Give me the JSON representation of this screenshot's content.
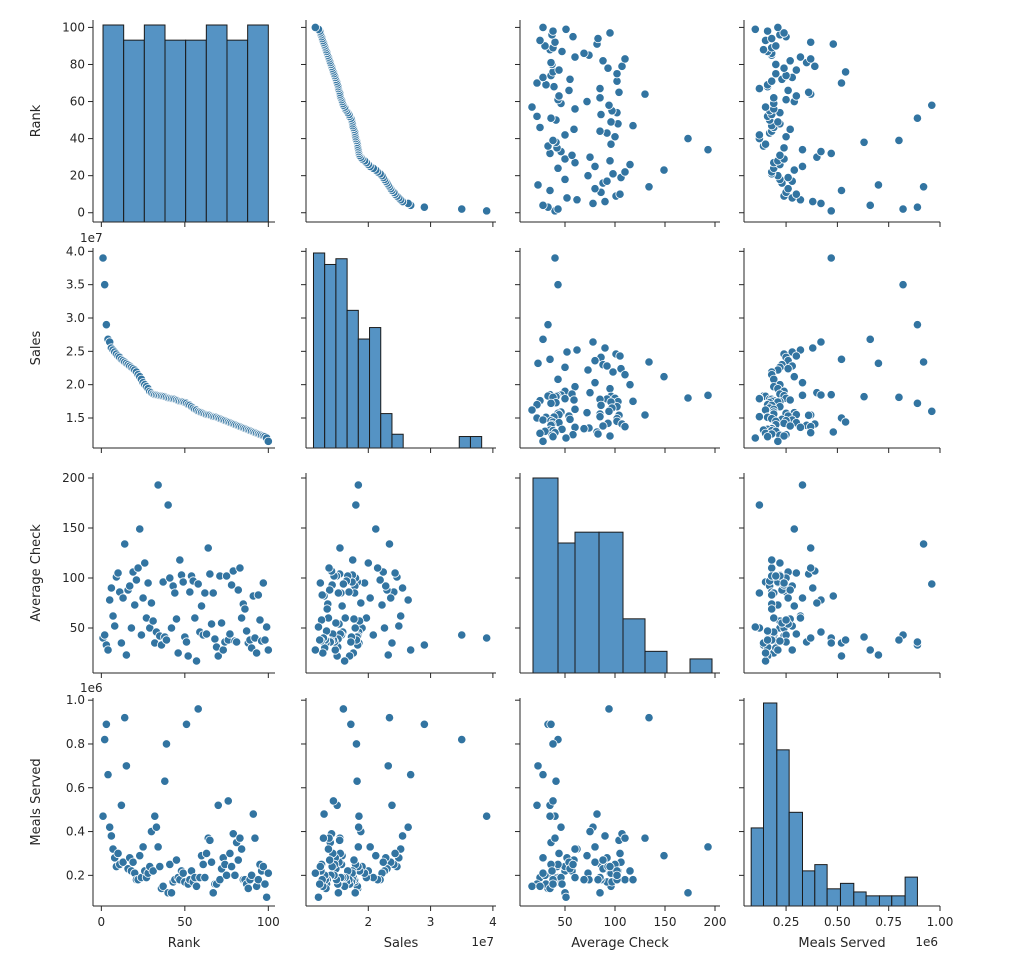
{
  "chart_data": {
    "type": "scatter",
    "kind": "pairplot",
    "color": "#3274a1",
    "hist_fill": "#5593c4",
    "variables": [
      "Rank",
      "Sales",
      "Average Check",
      "Meals Served"
    ],
    "axes": {
      "Rank": {
        "range": [
          -5,
          104
        ],
        "ticks": [
          0,
          50,
          100
        ],
        "tick_labels": [
          "0",
          "50",
          "100"
        ],
        "yticks": [
          0,
          20,
          40,
          60,
          80,
          100
        ],
        "ytick_labels": [
          "0",
          "20",
          "40",
          "60",
          "80",
          "100"
        ],
        "offset": ""
      },
      "Sales": {
        "range": [
          10000000.0,
          40500000.0
        ],
        "ticks": [
          20000000.0,
          30000000.0,
          40000000.0
        ],
        "tick_labels": [
          "2",
          "3",
          "4"
        ],
        "yrange": [
          10500000.0,
          40500000.0
        ],
        "yticks": [
          15000000.0,
          20000000.0,
          25000000.0,
          30000000.0,
          35000000.0,
          40000000.0
        ],
        "ytick_labels": [
          "1.5",
          "2.0",
          "2.5",
          "3.0",
          "3.5",
          "4.0"
        ],
        "offset": "1e7"
      },
      "Average Check": {
        "range": [
          5,
          205
        ],
        "ticks": [
          50,
          100,
          150,
          200
        ],
        "tick_labels": [
          "50",
          "100",
          "150",
          "200"
        ],
        "yrange": [
          5,
          205
        ],
        "yticks": [
          50,
          100,
          150,
          200
        ],
        "ytick_labels": [
          "50",
          "100",
          "150",
          "200"
        ],
        "offset": ""
      },
      "Meals Served": {
        "range": [
          45000.0,
          1000000.0
        ],
        "ticks": [
          250000,
          500000,
          750000,
          1000000
        ],
        "tick_labels": [
          "0.25",
          "0.50",
          "0.75",
          "1.00"
        ],
        "yrange": [
          60000.0,
          1010000.0
        ],
        "yticks": [
          200000,
          400000,
          600000,
          800000,
          1000000
        ],
        "ytick_labels": [
          "0.2",
          "0.4",
          "0.6",
          "0.8",
          "1.0"
        ],
        "offset": "1e6"
      }
    },
    "histograms": {
      "Rank": {
        "edges": [
          1,
          13.375,
          25.75,
          38.125,
          50.5,
          62.875,
          75.25,
          87.625,
          100
        ],
        "counts": [
          13,
          12,
          13,
          12,
          12,
          13,
          12,
          13
        ]
      },
      "Sales": {
        "edges": [
          11200000.0,
          13000000.0,
          14800000.0,
          16600000.0,
          18400000.0,
          20200000.0,
          22000000.0,
          23800000.0,
          25600000.0,
          27400000.0,
          29200000.0,
          31000000.0,
          32800000.0,
          34600000.0,
          36400000.0,
          38200000.0,
          40000000.0
        ],
        "counts": [
          17,
          16,
          16.5,
          12,
          9.5,
          10.5,
          3,
          1.2,
          0,
          0,
          0,
          0,
          0,
          1,
          1,
          0
        ]
      },
      "Average Check": {
        "edges": [
          18,
          43,
          60,
          84,
          108,
          130,
          152,
          175,
          197
        ],
        "counts": [
          18,
          12,
          13,
          13,
          5,
          2,
          0,
          1.3
        ]
      },
      "Meals Served": {
        "edges": [
          80000,
          140000,
          205000,
          265000,
          330000,
          390000,
          450000,
          515000,
          580000,
          640000,
          705000,
          765000,
          830000,
          890000,
          955000
        ],
        "counts": [
          10,
          26,
          20,
          12,
          4.5,
          5.3,
          2.2,
          2.9,
          1.8,
          1.3,
          1.3,
          1.3,
          3.7,
          0
        ]
      }
    },
    "records": [
      [
        1,
        39000000,
        40,
        470000
      ],
      [
        2,
        35000000,
        43,
        820000
      ],
      [
        3,
        29000000,
        33,
        890000
      ],
      [
        4,
        26800000,
        28,
        660000
      ],
      [
        5,
        26400000,
        78,
        420000
      ],
      [
        6,
        25500000,
        90,
        380000
      ],
      [
        7,
        25200000,
        62,
        320000
      ],
      [
        8,
        24900000,
        52,
        280000
      ],
      [
        9,
        24600000,
        101,
        240000
      ],
      [
        10,
        24300000,
        105,
        300000
      ],
      [
        11,
        24100000,
        86,
        250000
      ],
      [
        12,
        23800000,
        35,
        520000
      ],
      [
        13,
        23600000,
        80,
        260000
      ],
      [
        14,
        23400000,
        134,
        920000
      ],
      [
        15,
        23200000,
        23,
        700000
      ],
      [
        16,
        23000000,
        88,
        230000
      ],
      [
        17,
        22800000,
        92,
        280000
      ],
      [
        18,
        22600000,
        50,
        220000
      ],
      [
        19,
        22400000,
        106,
        260000
      ],
      [
        20,
        22200000,
        73,
        210000
      ],
      [
        21,
        21900000,
        98,
        180000
      ],
      [
        22,
        21500000,
        110,
        180000
      ],
      [
        23,
        21200000,
        149,
        290000
      ],
      [
        24,
        20800000,
        43,
        190000
      ],
      [
        25,
        20300000,
        80,
        330000
      ],
      [
        26,
        20000000,
        115,
        220000
      ],
      [
        27,
        19700000,
        60,
        190000
      ],
      [
        28,
        19400000,
        95,
        210000
      ],
      [
        29,
        19000000,
        50,
        240000
      ],
      [
        30,
        18800000,
        75,
        400000
      ],
      [
        31,
        18600000,
        57,
        220000
      ],
      [
        32,
        18500000,
        35,
        470000
      ],
      [
        33,
        18450000,
        46,
        420000
      ],
      [
        34,
        18400000,
        193,
        330000
      ],
      [
        35,
        18350000,
        42,
        240000
      ],
      [
        36,
        18300000,
        33,
        140000
      ],
      [
        37,
        18250000,
        96,
        150000
      ],
      [
        38,
        18200000,
        41,
        630000
      ],
      [
        39,
        18100000,
        38,
        800000
      ],
      [
        40,
        18000000,
        173,
        120000
      ],
      [
        41,
        17950000,
        100,
        250000
      ],
      [
        42,
        17900000,
        50,
        120000
      ],
      [
        43,
        17850000,
        92,
        170000
      ],
      [
        44,
        17800000,
        85,
        180000
      ],
      [
        45,
        17700000,
        59,
        270000
      ],
      [
        46,
        17600000,
        25,
        190000
      ],
      [
        47,
        17500000,
        118,
        180000
      ],
      [
        48,
        17450000,
        103,
        220000
      ],
      [
        49,
        17400000,
        96,
        210000
      ],
      [
        50,
        17300000,
        41,
        170000
      ],
      [
        51,
        17200000,
        36,
        890000
      ],
      [
        52,
        17000000,
        22,
        160000
      ],
      [
        53,
        16900000,
        86,
        180000
      ],
      [
        54,
        16700000,
        102,
        220000
      ],
      [
        55,
        16500000,
        97,
        170000
      ],
      [
        56,
        16300000,
        60,
        190000
      ],
      [
        57,
        16200000,
        17,
        150000
      ],
      [
        58,
        16000000,
        94,
        960000
      ],
      [
        59,
        15900000,
        46,
        190000
      ],
      [
        60,
        15800000,
        72,
        290000
      ],
      [
        61,
        15700000,
        43,
        250000
      ],
      [
        62,
        15600000,
        85,
        190000
      ],
      [
        63,
        15500000,
        44,
        300000
      ],
      [
        64,
        15450000,
        130,
        370000
      ],
      [
        65,
        15400000,
        104,
        360000
      ],
      [
        66,
        15300000,
        54,
        260000
      ],
      [
        67,
        15200000,
        85,
        120000
      ],
      [
        68,
        15150000,
        39,
        160000
      ],
      [
        69,
        15100000,
        31,
        160000
      ],
      [
        70,
        15000000,
        22,
        520000
      ],
      [
        71,
        14900000,
        102,
        180000
      ],
      [
        72,
        14800000,
        55,
        230000
      ],
      [
        73,
        14700000,
        28,
        280000
      ],
      [
        74,
        14600000,
        36,
        250000
      ],
      [
        75,
        14500000,
        102,
        200000
      ],
      [
        76,
        14400000,
        38,
        540000
      ],
      [
        77,
        14300000,
        44,
        300000
      ],
      [
        78,
        14200000,
        93,
        240000
      ],
      [
        79,
        14100000,
        107,
        390000
      ],
      [
        80,
        14000000,
        37,
        200000
      ],
      [
        81,
        13900000,
        36,
        350000
      ],
      [
        82,
        13800000,
        88,
        270000
      ],
      [
        83,
        13700000,
        110,
        370000
      ],
      [
        84,
        13600000,
        60,
        320000
      ],
      [
        85,
        13500000,
        74,
        180000
      ],
      [
        86,
        13400000,
        69,
        180000
      ],
      [
        87,
        13300000,
        47,
        160000
      ],
      [
        88,
        13200000,
        35,
        140000
      ],
      [
        89,
        13100000,
        38,
        180000
      ],
      [
        90,
        13000000,
        30,
        200000
      ],
      [
        91,
        12900000,
        82,
        480000
      ],
      [
        92,
        12800000,
        40,
        370000
      ],
      [
        93,
        12700000,
        25,
        150000
      ],
      [
        94,
        12600000,
        83,
        180000
      ],
      [
        95,
        12500000,
        58,
        250000
      ],
      [
        96,
        12400000,
        37,
        220000
      ],
      [
        97,
        12300000,
        95,
        240000
      ],
      [
        98,
        12200000,
        38,
        160000
      ],
      [
        99,
        12000000,
        51,
        100000
      ],
      [
        100,
        11500000,
        28,
        210000
      ]
    ]
  }
}
